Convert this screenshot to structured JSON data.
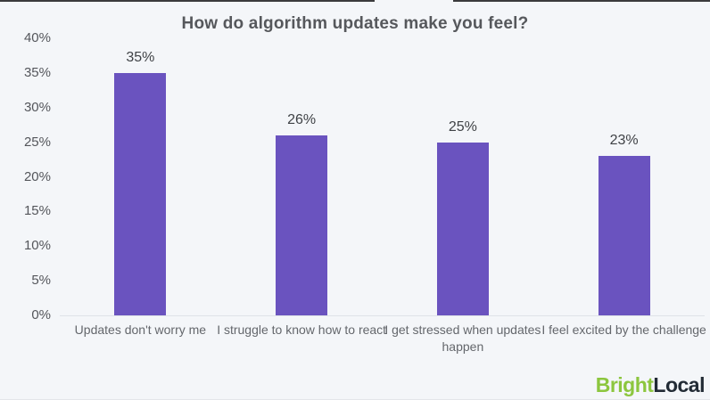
{
  "page": {
    "background": "#f4f6f9",
    "top_strip_color": "#3b3b3d"
  },
  "chart_data": {
    "type": "bar",
    "title": "How do algorithm updates make you feel?",
    "categories": [
      "Updates don't worry me",
      "I struggle to know how to react",
      "I get stressed when updates happen",
      "I feel excited by the challenge"
    ],
    "values": [
      35,
      26,
      25,
      23
    ],
    "value_labels": [
      "35%",
      "26%",
      "25%",
      "23%"
    ],
    "y_ticks": [
      0,
      5,
      10,
      15,
      20,
      25,
      30,
      35,
      40
    ],
    "y_tick_labels": [
      "0%",
      "5%",
      "10%",
      "15%",
      "20%",
      "25%",
      "30%",
      "35%",
      "40%"
    ],
    "ylim": [
      0,
      40
    ],
    "xlabel": "",
    "ylabel": "",
    "grid": false,
    "legend_position": "none",
    "bar_color": "#6a53bf"
  },
  "logo": {
    "bright": "Bright",
    "local": "Local",
    "bright_color": "#8cc63e",
    "local_color": "#222b35"
  }
}
